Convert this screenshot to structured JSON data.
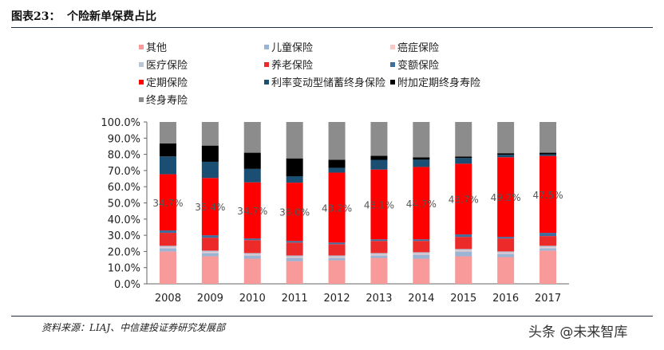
{
  "header": {
    "figure_label": "图表23：",
    "title": "个险新单保费占比"
  },
  "footer": {
    "source": "资料来源：LIAJ、中信建投证券研究发展部",
    "watermark": "头条 @未来智库"
  },
  "chart_data": {
    "type": "bar",
    "stacked": true,
    "title": "个险新单保费占比",
    "xlabel": "",
    "ylabel": "",
    "ylim": [
      0,
      100
    ],
    "ytick_step": 10,
    "ytick_format": "percent_1dp",
    "grid": false,
    "legend_position": "top",
    "categories": [
      "2008",
      "2009",
      "2010",
      "2011",
      "2012",
      "2013",
      "2014",
      "2015",
      "2016",
      "2017"
    ],
    "series": [
      {
        "name": "其他",
        "color": "#f89a9a",
        "values": [
          20.0,
          17.0,
          15.5,
          14.0,
          14.5,
          16.0,
          15.5,
          17.0,
          16.5,
          20.5
        ]
      },
      {
        "name": "儿童保险",
        "color": "#9ab4d4",
        "values": [
          2.0,
          2.0,
          2.0,
          2.0,
          1.5,
          1.5,
          2.5,
          3.0,
          2.0,
          1.5
        ]
      },
      {
        "name": "癌症保险",
        "color": "#f9c9c9",
        "values": [
          0.5,
          0.5,
          0.5,
          0.5,
          0.5,
          0.5,
          0.5,
          0.5,
          0.5,
          0.5
        ]
      },
      {
        "name": "医疗保险",
        "color": "#b8c6d6",
        "values": [
          1.0,
          1.0,
          1.0,
          1.0,
          1.0,
          1.0,
          1.0,
          1.0,
          1.0,
          1.0
        ]
      },
      {
        "name": "养老保险",
        "color": "#ec2a2a",
        "values": [
          8.0,
          8.0,
          8.0,
          8.0,
          7.0,
          7.5,
          7.0,
          7.5,
          8.0,
          6.0
        ]
      },
      {
        "name": "变额保险",
        "color": "#3f6d9e",
        "values": [
          1.5,
          1.5,
          1.0,
          1.0,
          1.0,
          1.0,
          1.0,
          1.5,
          1.0,
          2.0
        ]
      },
      {
        "name": "定期保险",
        "color": "#ff0000",
        "values": [
          34.7,
          35.4,
          34.7,
          36.0,
          43.2,
          43.1,
          44.7,
          43.7,
          49.2,
          47.5
        ]
      },
      {
        "name": "利率变动型储蓄终身保险",
        "color": "#1b4e73",
        "values": [
          11.0,
          10.0,
          8.3,
          4.0,
          3.0,
          6.0,
          4.5,
          3.5,
          1.5,
          1.0
        ]
      },
      {
        "name": "附加定期终身寿险",
        "color": "#000000",
        "values": [
          8.0,
          10.0,
          10.0,
          11.0,
          5.0,
          2.5,
          1.5,
          1.0,
          1.0,
          1.0
        ]
      },
      {
        "name": "终身寿险",
        "color": "#8c8c8c",
        "values": [
          13.3,
          14.6,
          19.0,
          22.5,
          23.3,
          20.9,
          21.8,
          21.3,
          19.3,
          19.0
        ]
      }
    ],
    "data_labels": {
      "series": "定期保险",
      "values": [
        "34.7%",
        "35.4%",
        "34.7%",
        "36.0%",
        "43.2%",
        "43.1%",
        "44.7%",
        "43.7%",
        "49.2%",
        "47.5%"
      ]
    }
  }
}
